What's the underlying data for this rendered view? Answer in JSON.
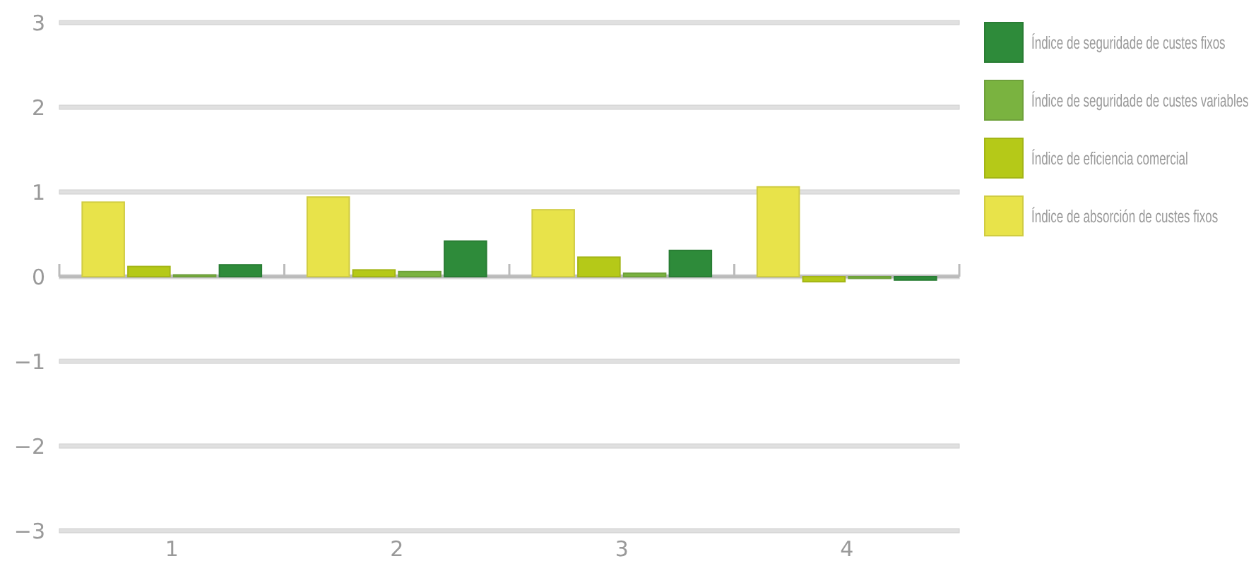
{
  "chart_data": {
    "type": "bar",
    "categories": [
      "1",
      "2",
      "3",
      "4"
    ],
    "series": [
      {
        "name": "Índice de absorción de custes fixos",
        "color": "#e8e34a",
        "values": [
          0.88,
          0.94,
          0.79,
          1.06
        ]
      },
      {
        "name": "Índice de eficiencia comercial",
        "color": "#b5c918",
        "values": [
          0.12,
          0.08,
          0.23,
          -0.06
        ]
      },
      {
        "name": "Índice de seguridade de custes variables",
        "color": "#7ab340",
        "values": [
          0.02,
          0.06,
          0.04,
          -0.02
        ]
      },
      {
        "name": "Índice de seguridade de custes fixos",
        "color": "#2e8b3a",
        "values": [
          0.14,
          0.42,
          0.31,
          -0.04
        ]
      }
    ],
    "ylim": [
      -3,
      3
    ],
    "yticks": [
      -3,
      -2,
      -1,
      0,
      1,
      2,
      3
    ],
    "grid": "y",
    "legend": "right"
  }
}
